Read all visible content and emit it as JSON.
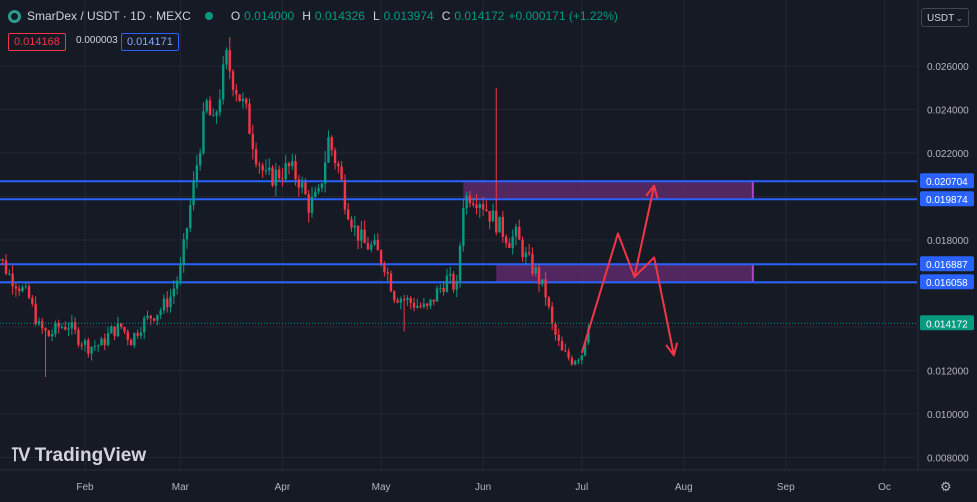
{
  "header": {
    "title": "SmarDex / USDT · 1D · MEXC",
    "o_label": "O",
    "o_value": "0.014000",
    "h_label": "H",
    "h_value": "0.014326",
    "l_label": "L",
    "l_value": "0.013974",
    "c_label": "C",
    "c_value": "0.014172",
    "change": "+0.000171 (+1.22%)"
  },
  "order": {
    "sell": "0.014168",
    "spread": "0.000003",
    "buy": "0.014171"
  },
  "currency_selector": {
    "label": "USDT"
  },
  "branding": "TradingView",
  "colors": {
    "up": "#089981",
    "down": "#f23645",
    "level_line": "#2962ff",
    "zone_fill": "#5d2a6b",
    "arrow": "#f23645"
  },
  "chart_data": {
    "type": "candlestick",
    "symbol": "SmarDex / USDT",
    "interval": "1D",
    "exchange": "MEXC",
    "x_tick_labels": [
      "Feb",
      "Mar",
      "Apr",
      "May",
      "Jun",
      "Jul",
      "Aug",
      "Sep",
      "Oc"
    ],
    "y_tick_labels": [
      "0.026000",
      "0.024000",
      "0.022000",
      "0.018000",
      "0.012000",
      "0.010000",
      "0.008000"
    ],
    "price_scale_range": [
      0.0074,
      0.0279
    ],
    "horizontal_levels": [
      "0.020704",
      "0.019874",
      "0.016887",
      "0.016058"
    ],
    "last_price": "0.014172",
    "zones": [
      {
        "top": 0.020704,
        "bottom": 0.019874,
        "from": "2024-05-26",
        "to": "2024-08-22"
      },
      {
        "top": 0.016887,
        "bottom": 0.016058,
        "from": "2024-06-05",
        "to": "2024-08-22"
      }
    ],
    "close_path": [
      [
        "2024-01-03",
        0.0178
      ],
      [
        "2024-01-06",
        0.0172
      ],
      [
        "2024-01-09",
        0.0164
      ],
      [
        "2024-01-12",
        0.0159
      ],
      [
        "2024-01-15",
        0.0153
      ],
      [
        "2024-01-18",
        0.014
      ],
      [
        "2024-01-21",
        0.0136
      ],
      [
        "2024-01-24",
        0.014
      ],
      [
        "2024-01-27",
        0.0141
      ],
      [
        "2024-01-30",
        0.0135
      ],
      [
        "2024-02-02",
        0.0131
      ],
      [
        "2024-02-06",
        0.0132
      ],
      [
        "2024-02-09",
        0.0138
      ],
      [
        "2024-02-12",
        0.014
      ],
      [
        "2024-02-15",
        0.0134
      ],
      [
        "2024-02-18",
        0.0141
      ],
      [
        "2024-02-21",
        0.0145
      ],
      [
        "2024-02-24",
        0.0148
      ],
      [
        "2024-02-27",
        0.0154
      ],
      [
        "2024-03-01",
        0.0166
      ],
      [
        "2024-03-03",
        0.0186
      ],
      [
        "2024-03-05",
        0.0205
      ],
      [
        "2024-03-07",
        0.0225
      ],
      [
        "2024-03-09",
        0.0242
      ],
      [
        "2024-03-11",
        0.0232
      ],
      [
        "2024-03-13",
        0.0248
      ],
      [
        "2024-03-15",
        0.0263
      ],
      [
        "2024-03-18",
        0.025
      ],
      [
        "2024-03-21",
        0.0238
      ],
      [
        "2024-03-24",
        0.022
      ],
      [
        "2024-03-27",
        0.0208
      ],
      [
        "2024-03-30",
        0.021
      ],
      [
        "2024-04-03",
        0.0213
      ],
      [
        "2024-04-06",
        0.0208
      ],
      [
        "2024-04-09",
        0.0196
      ],
      [
        "2024-04-12",
        0.02
      ],
      [
        "2024-04-15",
        0.0226
      ],
      [
        "2024-04-18",
        0.0213
      ],
      [
        "2024-04-20",
        0.0199
      ],
      [
        "2024-04-23",
        0.0185
      ],
      [
        "2024-04-26",
        0.0178
      ],
      [
        "2024-04-29",
        0.0176
      ],
      [
        "2024-05-02",
        0.0169
      ],
      [
        "2024-05-05",
        0.0155
      ],
      [
        "2024-05-09",
        0.0152
      ],
      [
        "2024-05-12",
        0.015
      ],
      [
        "2024-05-15",
        0.0148
      ],
      [
        "2024-05-18",
        0.0156
      ],
      [
        "2024-05-21",
        0.0162
      ],
      [
        "2024-05-24",
        0.0158
      ],
      [
        "2024-05-26",
        0.0198
      ],
      [
        "2024-05-28",
        0.0201
      ],
      [
        "2024-05-31",
        0.0199
      ],
      [
        "2024-06-03",
        0.0192
      ],
      [
        "2024-06-06",
        0.0186
      ],
      [
        "2024-06-09",
        0.018
      ],
      [
        "2024-06-11",
        0.0182
      ],
      [
        "2024-06-14",
        0.0172
      ],
      [
        "2024-06-17",
        0.0165
      ],
      [
        "2024-06-20",
        0.0155
      ],
      [
        "2024-06-22",
        0.014
      ],
      [
        "2024-06-25",
        0.0128
      ],
      [
        "2024-06-28",
        0.0125
      ],
      [
        "2024-07-01",
        0.0128
      ],
      [
        "2024-07-03",
        0.0142
      ]
    ],
    "spike_wicks": [
      {
        "date": "2024-06-05",
        "high": 0.025
      },
      {
        "date": "2024-01-20",
        "low": 0.0117
      },
      {
        "date": "2024-05-08",
        "low": 0.0138
      }
    ],
    "projection_arrows": [
      [
        [
          "2024-07-01",
          0.0128
        ],
        [
          "2024-07-12",
          0.0183
        ],
        [
          "2024-07-17",
          0.0163
        ],
        [
          "2024-07-23",
          0.0205
        ]
      ],
      [
        [
          "2024-07-17",
          0.0163
        ],
        [
          "2024-07-23",
          0.0172
        ],
        [
          "2024-07-29",
          0.0127
        ]
      ]
    ]
  }
}
